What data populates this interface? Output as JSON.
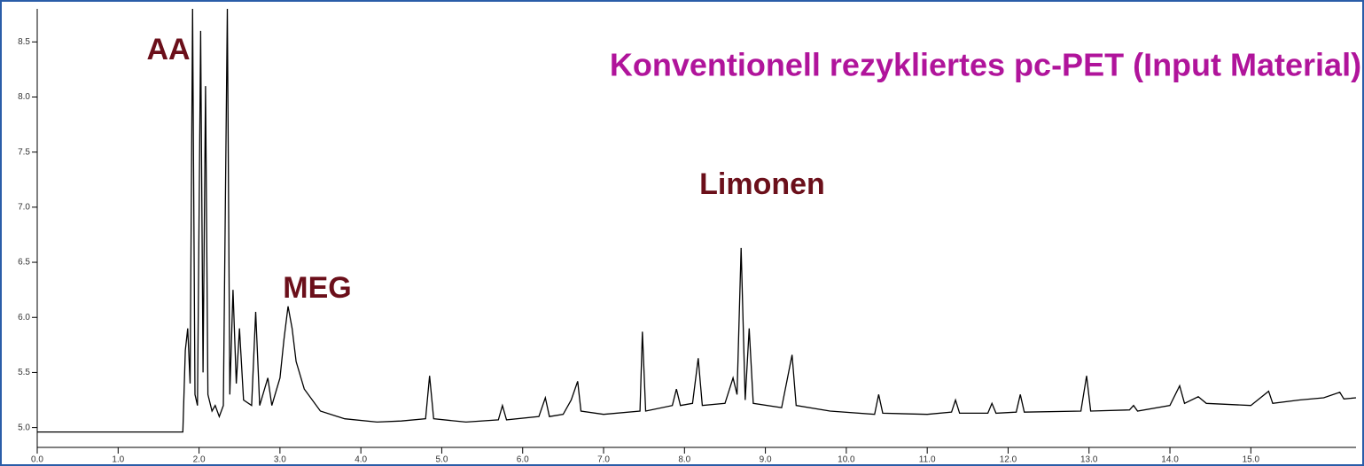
{
  "chart_data": {
    "type": "line",
    "title": "Konventionell rezykliertes pc-PET (Input Material)",
    "annotations": [
      "AA",
      "MEG",
      "Limonen"
    ],
    "x": [
      0,
      1.0,
      1.8,
      1.83,
      1.86,
      1.89,
      1.92,
      1.95,
      1.98,
      2.02,
      2.05,
      2.08,
      2.11,
      2.16,
      2.2,
      2.25,
      2.3,
      2.35,
      2.38,
      2.42,
      2.46,
      2.5,
      2.55,
      2.65,
      2.7,
      2.75,
      2.85,
      2.9,
      3.0,
      3.05,
      3.1,
      3.15,
      3.2,
      3.3,
      3.5,
      3.8,
      4.2,
      4.5,
      4.8,
      4.85,
      4.9,
      5.3,
      5.7,
      5.75,
      5.8,
      6.2,
      6.28,
      6.33,
      6.5,
      6.6,
      6.68,
      6.72,
      7.0,
      7.45,
      7.48,
      7.52,
      7.85,
      7.9,
      7.95,
      8.1,
      8.17,
      8.22,
      8.5,
      8.6,
      8.65,
      8.7,
      8.75,
      8.8,
      8.85,
      9.2,
      9.33,
      9.38,
      9.8,
      10.35,
      10.4,
      10.45,
      11.0,
      11.3,
      11.35,
      11.4,
      11.75,
      11.8,
      11.85,
      12.1,
      12.15,
      12.2,
      12.9,
      12.97,
      13.02,
      13.5,
      13.55,
      13.6,
      14.0,
      14.12,
      14.18,
      14.35,
      14.45,
      15.0,
      15.22,
      15.27,
      15.6,
      15.9,
      16.1,
      16.15,
      16.3
    ],
    "series": [
      {
        "color": "#000000",
        "values": [
          4.96,
          4.96,
          4.96,
          5.7,
          5.9,
          5.4,
          8.8,
          5.3,
          5.2,
          8.6,
          5.5,
          8.1,
          5.3,
          5.15,
          5.2,
          5.1,
          5.2,
          8.8,
          5.3,
          6.25,
          5.4,
          5.9,
          5.25,
          5.2,
          6.05,
          5.2,
          5.45,
          5.2,
          5.45,
          5.8,
          6.1,
          5.9,
          5.6,
          5.35,
          5.15,
          5.08,
          5.05,
          5.06,
          5.08,
          5.47,
          5.08,
          5.05,
          5.07,
          5.2,
          5.07,
          5.1,
          5.27,
          5.1,
          5.12,
          5.25,
          5.42,
          5.15,
          5.12,
          5.15,
          5.87,
          5.15,
          5.2,
          5.35,
          5.2,
          5.22,
          5.63,
          5.2,
          5.22,
          5.45,
          5.3,
          6.63,
          5.25,
          5.9,
          5.22,
          5.18,
          5.66,
          5.2,
          5.15,
          5.12,
          5.3,
          5.13,
          5.12,
          5.14,
          5.25,
          5.13,
          5.13,
          5.22,
          5.13,
          5.14,
          5.3,
          5.14,
          5.15,
          5.47,
          5.15,
          5.16,
          5.2,
          5.15,
          5.2,
          5.38,
          5.22,
          5.28,
          5.22,
          5.2,
          5.33,
          5.22,
          5.25,
          5.27,
          5.32,
          5.26,
          5.27
        ]
      }
    ],
    "xlim": [
      0,
      16.3
    ],
    "ylim": [
      4.82,
      8.8
    ],
    "xticks": [
      {
        "value": 0,
        "label": "0.0"
      },
      {
        "value": 1,
        "label": "1.0"
      },
      {
        "value": 2,
        "label": "2.0"
      },
      {
        "value": 3,
        "label": "3.0"
      },
      {
        "value": 4,
        "label": "4.0"
      },
      {
        "value": 5,
        "label": "5.0"
      },
      {
        "value": 6,
        "label": "6.0"
      },
      {
        "value": 7,
        "label": "7.0"
      },
      {
        "value": 8,
        "label": "8.0"
      },
      {
        "value": 9,
        "label": "9.0"
      },
      {
        "value": 10,
        "label": "10.0"
      },
      {
        "value": 11,
        "label": "11.0"
      },
      {
        "value": 12,
        "label": "12.0"
      },
      {
        "value": 13,
        "label": "13.0"
      },
      {
        "value": 14,
        "label": "14.0"
      },
      {
        "value": 15,
        "label": "15.0"
      }
    ],
    "yticks": [
      {
        "value": 5,
        "label": "5.0"
      },
      {
        "value": 5.5,
        "label": "5.5"
      },
      {
        "value": 6,
        "label": "6.0"
      },
      {
        "value": 6.5,
        "label": "6.5"
      },
      {
        "value": 7,
        "label": "7.0"
      },
      {
        "value": 7.5,
        "label": "7.5"
      },
      {
        "value": 8,
        "label": "8.0"
      },
      {
        "value": 8.5,
        "label": "8.5"
      }
    ]
  }
}
